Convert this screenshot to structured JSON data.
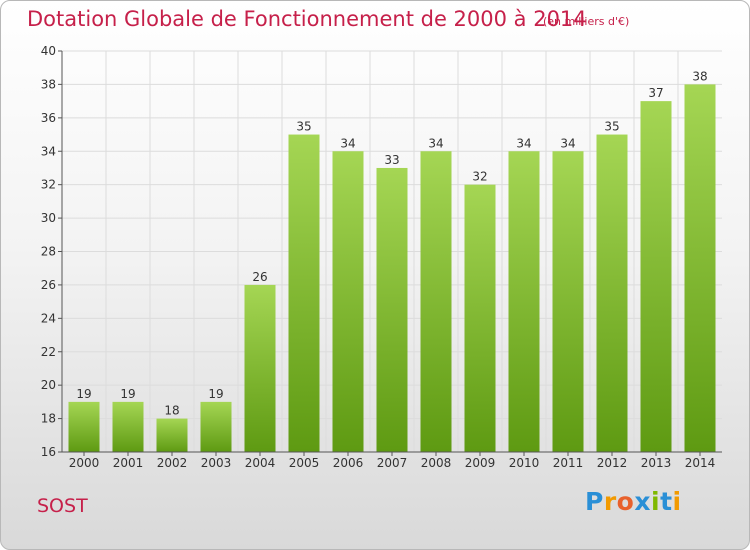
{
  "header": {
    "title": "Dotation Globale de Fonctionnement de 2000 à 2014",
    "unit_note": "(en milliers d'€)"
  },
  "footer": {
    "place": "SOST",
    "brand": "Proxiti",
    "brand_colors": [
      "#2a8fd6",
      "#f29a00",
      "#e8612c",
      "#2a8fd6",
      "#7fb800",
      "#2a8fd6",
      "#f29a00"
    ]
  },
  "chart_data": {
    "type": "bar",
    "categories": [
      "2000",
      "2001",
      "2002",
      "2003",
      "2004",
      "2005",
      "2006",
      "2007",
      "2008",
      "2009",
      "2010",
      "2011",
      "2012",
      "2013",
      "2014"
    ],
    "values": [
      19,
      19,
      18,
      19,
      26,
      35,
      34,
      33,
      34,
      32,
      34,
      34,
      35,
      37,
      38
    ],
    "ylim": [
      16,
      40
    ],
    "yticks": [
      16,
      18,
      20,
      22,
      24,
      26,
      28,
      30,
      32,
      34,
      36,
      38,
      40
    ],
    "grid": true,
    "bar_color_top": "#a5d654",
    "bar_color_bottom": "#5e9a12"
  }
}
